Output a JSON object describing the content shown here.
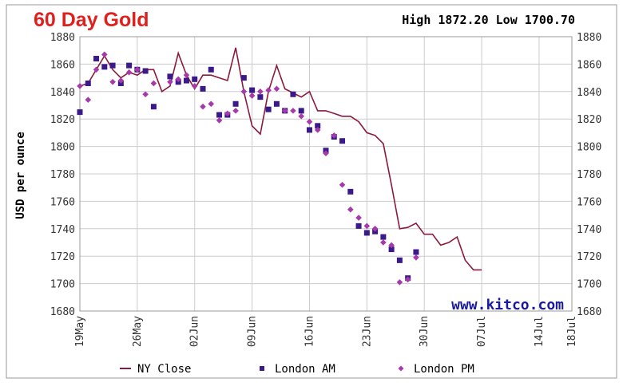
{
  "header": {
    "title": "60 Day Gold",
    "high_low": "High 1872.20 Low 1700.70"
  },
  "watermark": "www.kitco.com",
  "legend": [
    {
      "label": "NY Close",
      "color": "#8b1a3a",
      "marker": "line"
    },
    {
      "label": "London AM",
      "color": "#3a1a8a",
      "marker": "square"
    },
    {
      "label": "London PM",
      "color": "#a63aaa",
      "marker": "diamond"
    }
  ],
  "chart_data": {
    "type": "line",
    "ylabel": "USD per ounce",
    "ylim": [
      1680,
      1880
    ],
    "yticks": [
      1680,
      1700,
      1720,
      1740,
      1760,
      1780,
      1800,
      1820,
      1840,
      1860,
      1880
    ],
    "xlim": [
      0,
      60
    ],
    "xticks": [
      {
        "x": 0,
        "label": "19May"
      },
      {
        "x": 7,
        "label": "26May"
      },
      {
        "x": 14,
        "label": "02Jun"
      },
      {
        "x": 21,
        "label": "09Jun"
      },
      {
        "x": 28,
        "label": "16Jun"
      },
      {
        "x": 35,
        "label": "23Jun"
      },
      {
        "x": 42,
        "label": "30Jun"
      },
      {
        "x": 49,
        "label": "07Jul"
      },
      {
        "x": 56,
        "label": "14Jul"
      },
      {
        "x": 60,
        "label": "18Jul"
      }
    ],
    "grid": true,
    "legend_position": "bottom",
    "series": [
      {
        "name": "NY Close",
        "style": "line",
        "color": "#8b1a3a",
        "points": [
          [
            0,
            1844
          ],
          [
            1,
            1846
          ],
          [
            2,
            1856
          ],
          [
            3,
            1866
          ],
          [
            4,
            1856
          ],
          [
            5,
            1850
          ],
          [
            6,
            1854
          ],
          [
            7,
            1852
          ],
          [
            8,
            1856
          ],
          [
            9,
            1856
          ],
          [
            10,
            1840
          ],
          [
            11,
            1844
          ],
          [
            12,
            1868
          ],
          [
            13,
            1852
          ],
          [
            14,
            1842
          ],
          [
            15,
            1852
          ],
          [
            16,
            1852
          ],
          [
            17,
            1850
          ],
          [
            18,
            1848
          ],
          [
            19,
            1872
          ],
          [
            20,
            1840
          ],
          [
            21,
            1815
          ],
          [
            22,
            1809
          ],
          [
            23,
            1840
          ],
          [
            24,
            1859
          ],
          [
            25,
            1842
          ],
          [
            26,
            1839
          ],
          [
            27,
            1836
          ],
          [
            28,
            1840
          ],
          [
            29,
            1826
          ],
          [
            30,
            1826
          ],
          [
            31,
            1824
          ],
          [
            32,
            1822
          ],
          [
            33,
            1822
          ],
          [
            34,
            1818
          ],
          [
            35,
            1810
          ],
          [
            36,
            1808
          ],
          [
            37,
            1802
          ],
          [
            38,
            1772
          ],
          [
            39,
            1740
          ],
          [
            40,
            1741
          ],
          [
            41,
            1744
          ],
          [
            42,
            1736
          ],
          [
            43,
            1736
          ],
          [
            44,
            1728
          ],
          [
            45,
            1730
          ],
          [
            46,
            1734
          ],
          [
            47,
            1717
          ],
          [
            48,
            1710
          ],
          [
            49,
            1710
          ]
        ]
      },
      {
        "name": "London AM",
        "style": "square",
        "color": "#3a1a8a",
        "points": [
          [
            0,
            1825
          ],
          [
            1,
            1846
          ],
          [
            2,
            1864
          ],
          [
            3,
            1858
          ],
          [
            4,
            1859
          ],
          [
            5,
            1846
          ],
          [
            6,
            1859
          ],
          [
            7,
            1856
          ],
          [
            8,
            1855
          ],
          [
            9,
            1829
          ],
          [
            11,
            1851
          ],
          [
            12,
            1847
          ],
          [
            13,
            1848
          ],
          [
            14,
            1849
          ],
          [
            15,
            1842
          ],
          [
            16,
            1856
          ],
          [
            17,
            1823
          ],
          [
            18,
            1823
          ],
          [
            19,
            1831
          ],
          [
            20,
            1850
          ],
          [
            21,
            1841
          ],
          [
            22,
            1836
          ],
          [
            23,
            1827
          ],
          [
            24,
            1831
          ],
          [
            25,
            1826
          ],
          [
            26,
            1838
          ],
          [
            27,
            1826
          ],
          [
            28,
            1812
          ],
          [
            29,
            1815
          ],
          [
            30,
            1797
          ],
          [
            31,
            1807
          ],
          [
            32,
            1804
          ],
          [
            33,
            1767
          ],
          [
            34,
            1742
          ],
          [
            35,
            1737
          ],
          [
            36,
            1738
          ],
          [
            37,
            1734
          ],
          [
            38,
            1725
          ],
          [
            39,
            1717
          ],
          [
            40,
            1704
          ],
          [
            41,
            1723
          ]
        ]
      },
      {
        "name": "London PM",
        "style": "diamond",
        "color": "#a63aaa",
        "points": [
          [
            0,
            1844
          ],
          [
            1,
            1834
          ],
          [
            2,
            1856
          ],
          [
            3,
            1867
          ],
          [
            4,
            1847
          ],
          [
            5,
            1848
          ],
          [
            6,
            1854
          ],
          [
            7,
            1856
          ],
          [
            8,
            1838
          ],
          [
            9,
            1846
          ],
          [
            11,
            1847
          ],
          [
            12,
            1849
          ],
          [
            13,
            1852
          ],
          [
            14,
            1844
          ],
          [
            15,
            1829
          ],
          [
            16,
            1831
          ],
          [
            17,
            1819
          ],
          [
            18,
            1824
          ],
          [
            19,
            1826
          ],
          [
            20,
            1840
          ],
          [
            21,
            1837
          ],
          [
            22,
            1840
          ],
          [
            23,
            1841
          ],
          [
            24,
            1842
          ],
          [
            25,
            1826
          ],
          [
            26,
            1826
          ],
          [
            27,
            1822
          ],
          [
            28,
            1818
          ],
          [
            29,
            1812
          ],
          [
            30,
            1795
          ],
          [
            31,
            1808
          ],
          [
            32,
            1772
          ],
          [
            33,
            1754
          ],
          [
            34,
            1748
          ],
          [
            35,
            1742
          ],
          [
            36,
            1740
          ],
          [
            37,
            1730
          ],
          [
            38,
            1728
          ],
          [
            39,
            1701
          ],
          [
            40,
            1703
          ],
          [
            41,
            1719
          ]
        ]
      }
    ]
  }
}
